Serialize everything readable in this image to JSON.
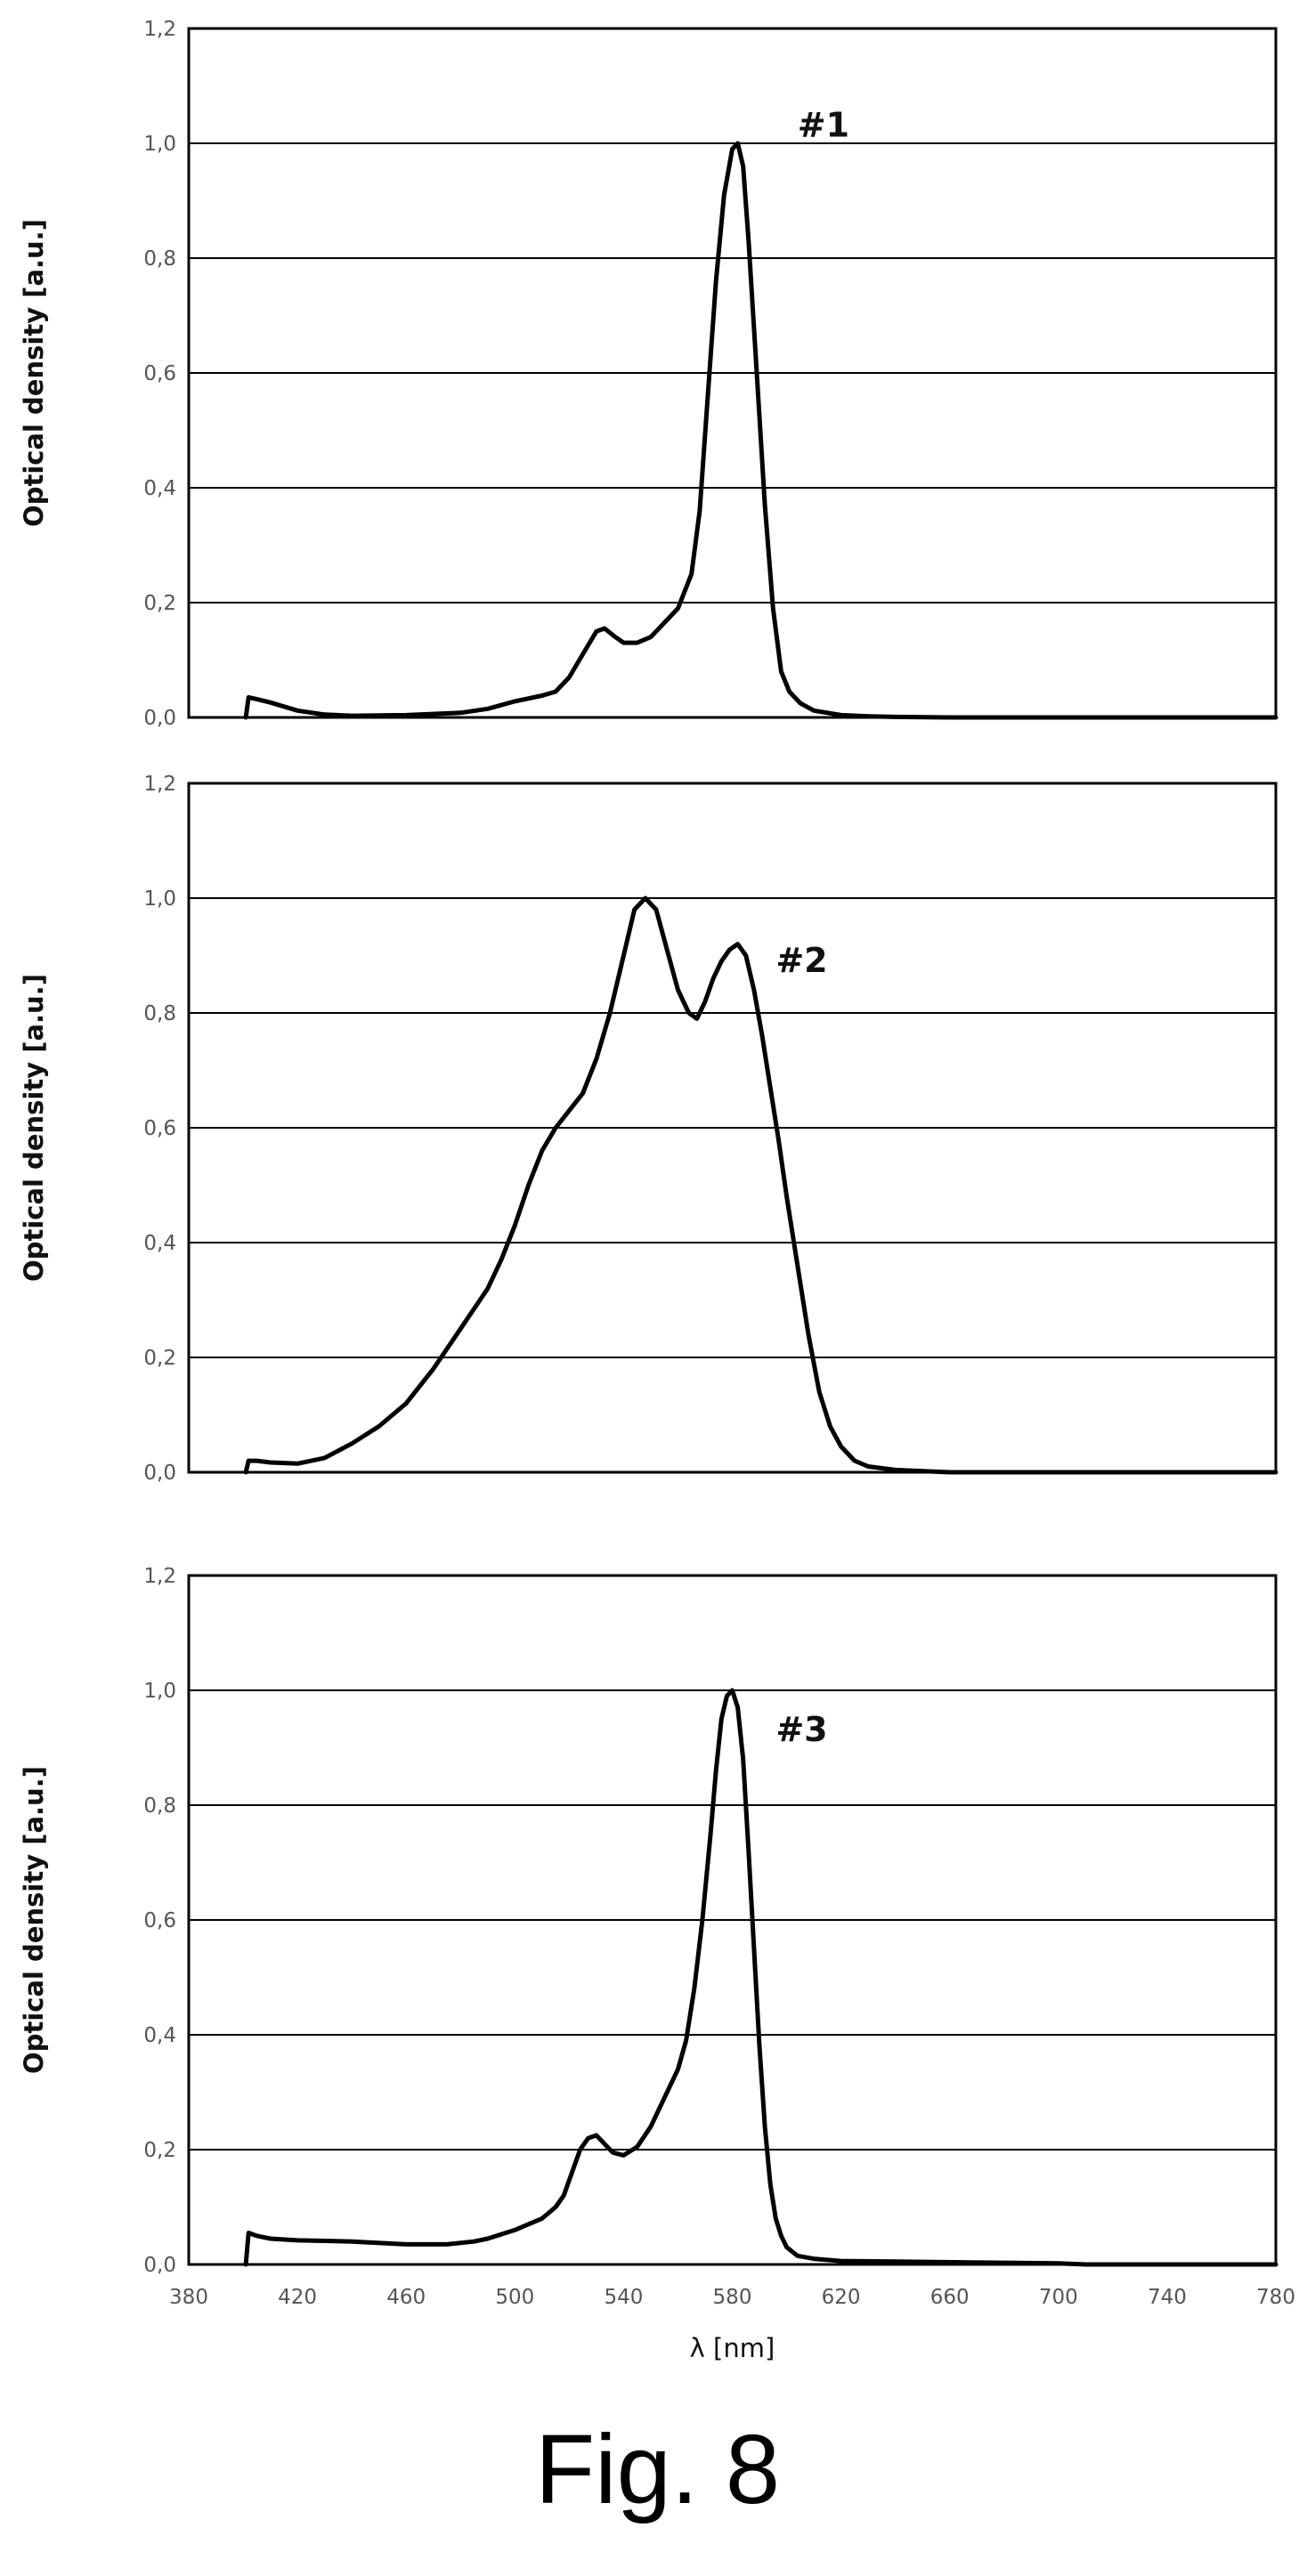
{
  "figure_caption": "Fig. 8",
  "colors": {
    "line": "#000000",
    "grid": "#000000",
    "frame": "#000000",
    "tick_text": "#555555"
  },
  "chart_data": [
    {
      "type": "line",
      "panel_label": "#1",
      "ylabel": "Optical density [a.u.]",
      "xlabel": "",
      "xlim": [
        380,
        780
      ],
      "ylim": [
        0,
        1.2
      ],
      "x_ticks": [],
      "y_ticks": [
        "0,0",
        "0,2",
        "0,4",
        "0,6",
        "0,8",
        "1,0",
        "1,2"
      ],
      "grid": "horizontal",
      "series": [
        {
          "x": [
            401,
            402,
            405,
            410,
            420,
            430,
            440,
            460,
            480,
            490,
            500,
            510,
            515,
            520,
            525,
            530,
            533,
            537,
            540,
            545,
            550,
            555,
            560,
            565,
            568,
            571,
            574,
            577,
            580,
            582,
            584,
            586,
            589,
            592,
            595,
            598,
            601,
            605,
            610,
            620,
            630,
            640,
            660,
            700,
            740,
            780
          ],
          "y": [
            0.0,
            0.035,
            0.032,
            0.026,
            0.012,
            0.005,
            0.003,
            0.004,
            0.008,
            0.015,
            0.028,
            0.038,
            0.045,
            0.07,
            0.11,
            0.15,
            0.155,
            0.14,
            0.13,
            0.13,
            0.14,
            0.165,
            0.19,
            0.25,
            0.36,
            0.56,
            0.76,
            0.91,
            0.99,
            1.0,
            0.96,
            0.83,
            0.6,
            0.37,
            0.19,
            0.08,
            0.045,
            0.025,
            0.012,
            0.004,
            0.002,
            0.001,
            0.0,
            0.0,
            0.0,
            0.0
          ]
        }
      ]
    },
    {
      "type": "line",
      "panel_label": "#2",
      "ylabel": "Optical density [a.u.]",
      "xlabel": "",
      "xlim": [
        380,
        780
      ],
      "ylim": [
        0,
        1.2
      ],
      "x_ticks": [],
      "y_ticks": [
        "0,0",
        "0,2",
        "0,4",
        "0,6",
        "0,8",
        "1,0",
        "1,2"
      ],
      "grid": "horizontal",
      "series": [
        {
          "x": [
            401,
            402,
            405,
            410,
            420,
            430,
            440,
            450,
            460,
            470,
            480,
            490,
            495,
            500,
            505,
            510,
            515,
            520,
            525,
            530,
            535,
            538,
            541,
            544,
            548,
            552,
            556,
            560,
            564,
            567,
            570,
            573,
            576,
            579,
            582,
            585,
            588,
            591,
            594,
            597,
            600,
            604,
            608,
            612,
            616,
            620,
            625,
            630,
            640,
            660,
            700,
            740,
            780
          ],
          "y": [
            0.0,
            0.02,
            0.02,
            0.017,
            0.015,
            0.025,
            0.05,
            0.08,
            0.12,
            0.18,
            0.25,
            0.32,
            0.37,
            0.43,
            0.5,
            0.56,
            0.6,
            0.63,
            0.66,
            0.72,
            0.8,
            0.86,
            0.92,
            0.98,
            1.0,
            0.98,
            0.91,
            0.84,
            0.8,
            0.79,
            0.82,
            0.86,
            0.89,
            0.91,
            0.92,
            0.9,
            0.84,
            0.76,
            0.67,
            0.58,
            0.48,
            0.36,
            0.24,
            0.14,
            0.08,
            0.045,
            0.02,
            0.01,
            0.004,
            0.0,
            0.0,
            0.0,
            0.0
          ]
        }
      ]
    },
    {
      "type": "line",
      "panel_label": "#3",
      "ylabel": "Optical density [a.u.]",
      "xlabel": "λ [nm]",
      "xlim": [
        380,
        780
      ],
      "ylim": [
        0,
        1.2
      ],
      "x_ticks": [
        "380",
        "420",
        "460",
        "500",
        "540",
        "580",
        "620",
        "660",
        "700",
        "740",
        "780"
      ],
      "y_ticks": [
        "0,0",
        "0,2",
        "0,4",
        "0,6",
        "0,8",
        "1,0",
        "1,2"
      ],
      "grid": "horizontal",
      "series": [
        {
          "x": [
            401,
            402,
            405,
            410,
            420,
            440,
            460,
            475,
            485,
            490,
            500,
            505,
            510,
            515,
            518,
            521,
            524,
            527,
            530,
            533,
            536,
            540,
            545,
            550,
            555,
            560,
            563,
            566,
            569,
            572,
            574,
            576,
            578,
            580,
            582,
            584,
            586,
            588,
            590,
            592,
            594,
            596,
            598,
            600,
            604,
            610,
            620,
            640,
            680,
            700,
            710,
            740,
            780
          ],
          "y": [
            0.0,
            0.055,
            0.05,
            0.045,
            0.042,
            0.04,
            0.035,
            0.035,
            0.04,
            0.045,
            0.06,
            0.07,
            0.08,
            0.1,
            0.12,
            0.16,
            0.2,
            0.22,
            0.225,
            0.21,
            0.195,
            0.19,
            0.205,
            0.24,
            0.29,
            0.34,
            0.39,
            0.48,
            0.6,
            0.75,
            0.86,
            0.95,
            0.99,
            1.0,
            0.97,
            0.88,
            0.72,
            0.55,
            0.38,
            0.24,
            0.14,
            0.08,
            0.05,
            0.03,
            0.015,
            0.01,
            0.006,
            0.005,
            0.003,
            0.002,
            0.0,
            0.0,
            0.0
          ]
        }
      ]
    }
  ]
}
